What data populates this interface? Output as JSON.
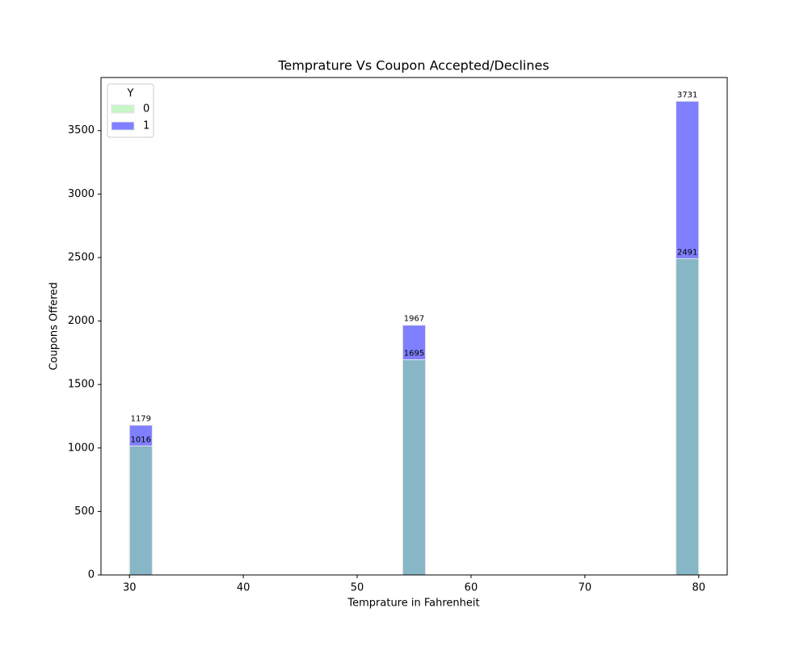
{
  "chart_data": {
    "type": "histogram",
    "title": "Temprature Vs Coupon Accepted/Declines",
    "x_label": "Temprature in Fahrenheit",
    "y_label": "Coupons Offered",
    "bins": [
      30,
      32,
      34,
      36,
      38,
      40,
      42,
      44,
      46,
      48,
      50,
      52,
      54,
      56,
      58,
      60,
      62,
      64,
      66,
      68,
      70,
      72,
      74,
      76,
      78,
      80
    ],
    "series": [
      {
        "name": "0",
        "color": "#90ee90",
        "values": [
          1016,
          0,
          0,
          0,
          0,
          0,
          0,
          0,
          0,
          0,
          0,
          0,
          1695,
          0,
          0,
          0,
          0,
          0,
          0,
          0,
          0,
          0,
          0,
          0,
          2491
        ]
      },
      {
        "name": "1",
        "color": "#0000ff",
        "values": [
          1179,
          0,
          0,
          0,
          0,
          0,
          0,
          0,
          0,
          0,
          0,
          0,
          1967,
          0,
          0,
          0,
          0,
          0,
          0,
          0,
          0,
          0,
          0,
          0,
          3731
        ]
      }
    ],
    "alpha": 0.5,
    "legend_title": "Y",
    "legend_position": "upper-left",
    "xlim": [
      27.5,
      82.5
    ],
    "xticks": [
      30,
      40,
      50,
      60,
      70,
      80
    ],
    "ylim": [
      0,
      3918
    ],
    "yticks": [
      0,
      500,
      1000,
      1500,
      2000,
      2500,
      3000,
      3500
    ],
    "grid": false
  }
}
